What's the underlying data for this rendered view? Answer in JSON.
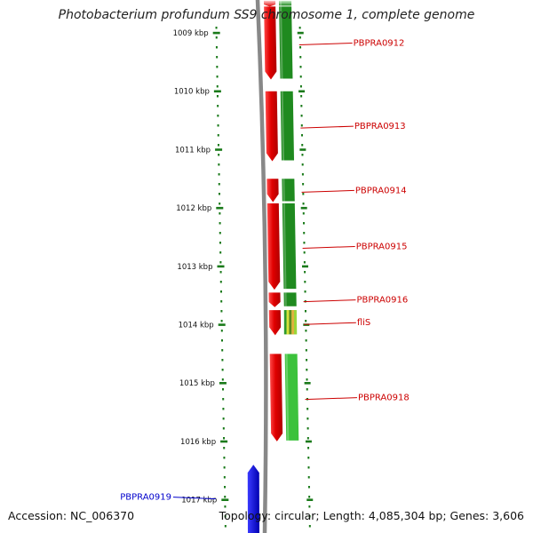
{
  "title": "Photobacterium profundum SS9 chromosome 1, complete genome",
  "accession": "Accession: NC_006370",
  "topology": "Topology: circular; Length: 4,085,304 bp; Genes: 3,606",
  "scale": {
    "unit": "kbp",
    "ticks": [
      {
        "kbp": 1009,
        "label": "1009 kbp"
      },
      {
        "kbp": 1010,
        "label": "1010 kbp"
      },
      {
        "kbp": 1011,
        "label": "1011 kbp"
      },
      {
        "kbp": 1012,
        "label": "1012 kbp"
      },
      {
        "kbp": 1013,
        "label": "1013 kbp"
      },
      {
        "kbp": 1014,
        "label": "1014 kbp"
      },
      {
        "kbp": 1015,
        "label": "1015 kbp"
      },
      {
        "kbp": 1016,
        "label": "1016 kbp"
      },
      {
        "kbp": 1017,
        "label": "1017 kbp"
      }
    ]
  },
  "colors": {
    "cds_forward": "#e00000",
    "gene_forward": "#1f8a1f",
    "gene_light": "#3cc23c",
    "reverse": "#0000e0",
    "backbone": "#888888",
    "scale": "#1a7a1a",
    "label_forward": "#cc0000",
    "label_reverse": "#0000cc"
  },
  "genes": [
    {
      "name": "",
      "strand": "+",
      "start": 1008.45,
      "end": 1008.55,
      "color": "#1f8a1f"
    },
    {
      "name": "PBPRA0912",
      "strand": "+",
      "start": 1008.55,
      "end": 1009.8,
      "color": "#1f8a1f"
    },
    {
      "name": "PBPRA0913",
      "strand": "+",
      "start": 1010.0,
      "end": 1011.2,
      "color": "#1f8a1f"
    },
    {
      "name": "PBPRA0914",
      "strand": "+",
      "start": 1011.5,
      "end": 1011.9,
      "color": "#1f8a1f"
    },
    {
      "name": "PBPRA0915",
      "strand": "+",
      "start": 1011.92,
      "end": 1013.4,
      "color": "#1f8a1f"
    },
    {
      "name": "PBPRA0916",
      "strand": "+",
      "start": 1013.45,
      "end": 1013.7,
      "color": "#1f8a1f"
    },
    {
      "name": "fliS",
      "strand": "+",
      "start": 1013.75,
      "end": 1014.18,
      "color": "#8fd63a"
    },
    {
      "name": "PBPRA0918",
      "strand": "+",
      "start": 1014.5,
      "end": 1016.0,
      "color": "#3cc23c"
    },
    {
      "name": "PBPRA0919",
      "strand": "-",
      "start": 1016.4,
      "end": 1017.6,
      "color": "#0000e0"
    }
  ]
}
